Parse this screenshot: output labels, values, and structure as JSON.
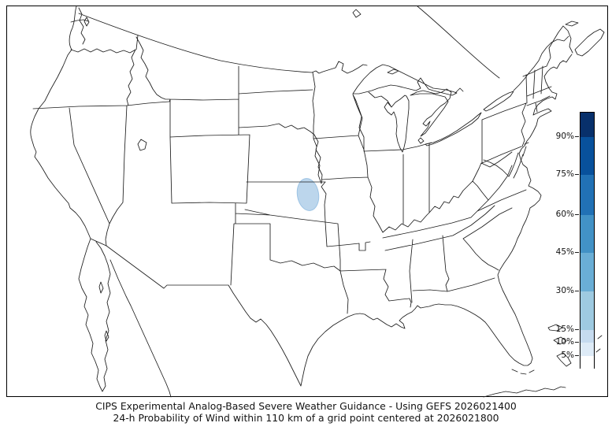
{
  "caption": {
    "line1": "CIPS Experimental Analog-Based Severe Weather Guidance - Using GEFS 2026021400",
    "line2": "24-h Probability of Wind within 110 km of a grid point centered at 2026021800"
  },
  "colorbar": {
    "tick_labels": [
      "90%",
      "75%",
      "60%",
      "45%",
      "30%",
      "15%",
      "10%",
      "5%"
    ],
    "segment_colors": [
      "#08306b",
      "#08519c",
      "#2171b5",
      "#4292c6",
      "#6aaed6",
      "#9ecae1",
      "#c6dbef",
      "#deebf7",
      "#ffffff"
    ]
  },
  "map": {
    "contour": {
      "region": "northeast Kansas",
      "level": "5%",
      "fill": "#bcd6ec",
      "edge": "#9cc3e4"
    }
  }
}
